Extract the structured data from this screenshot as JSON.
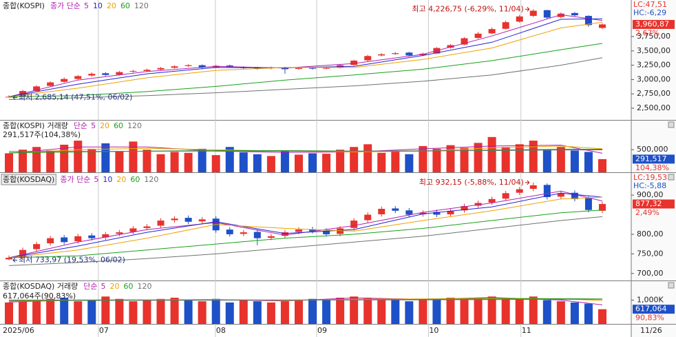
{
  "chart_data": [
    {
      "type": "candlestick",
      "title": "종합(KOSPI)",
      "ma_label": "종가 단순",
      "up_color": "#e8322c",
      "down_color": "#1e50c8",
      "open": [
        2690,
        2710,
        2800,
        2890,
        2960,
        3010,
        3070,
        3110,
        3085,
        3140,
        3150,
        3175,
        3205,
        3235,
        3250,
        3215,
        3245,
        3215,
        3205,
        3195,
        3210,
        3185,
        3200,
        3195,
        3205,
        3255,
        3335,
        3420,
        3445,
        3470,
        3425,
        3455,
        3555,
        3610,
        3725,
        3805,
        3885,
        4010,
        4110,
        4210,
        4090,
        4160,
        4110,
        3900
      ],
      "high": [
        2725,
        2820,
        2900,
        2970,
        3035,
        3080,
        3125,
        3130,
        3150,
        3170,
        3190,
        3220,
        3250,
        3270,
        3265,
        3255,
        3260,
        3230,
        3220,
        3225,
        3225,
        3215,
        3215,
        3215,
        3265,
        3345,
        3430,
        3460,
        3480,
        3485,
        3470,
        3565,
        3620,
        3740,
        3830,
        3910,
        4030,
        4130,
        4226.75,
        4215,
        4170,
        4180,
        4120,
        3980
      ],
      "low": [
        2685.14,
        2700,
        2785,
        2875,
        2945,
        2995,
        3050,
        3060,
        3070,
        3120,
        3135,
        3160,
        3190,
        3220,
        3195,
        3200,
        3205,
        3185,
        3170,
        3180,
        3100,
        3170,
        3175,
        3180,
        3195,
        3245,
        3320,
        3405,
        3430,
        3400,
        3410,
        3445,
        3540,
        3600,
        3710,
        3790,
        3870,
        3990,
        4090,
        4050,
        4070,
        4100,
        3920,
        3880
      ],
      "close": [
        2700,
        2800,
        2880,
        2950,
        3010,
        3060,
        3100,
        3080,
        3130,
        3150,
        3170,
        3200,
        3230,
        3250,
        3210,
        3240,
        3220,
        3200,
        3190,
        3210,
        3180,
        3200,
        3190,
        3200,
        3250,
        3330,
        3410,
        3440,
        3460,
        3420,
        3450,
        3550,
        3600,
        3720,
        3800,
        3880,
        4000,
        4100,
        4200,
        4080,
        4150,
        4120,
        3950,
        3960.87
      ],
      "series": [
        {
          "name": "5",
          "color": "#b01fb0",
          "x": [
            0,
            5,
            10,
            15,
            20,
            25,
            30,
            35,
            40,
            43
          ],
          "values": [
            2700,
            2990,
            3140,
            3230,
            3200,
            3280,
            3440,
            3760,
            4130,
            4030
          ]
        },
        {
          "name": "10",
          "color": "#2323d0",
          "x": [
            0,
            5,
            10,
            15,
            20,
            25,
            30,
            35,
            40,
            43
          ],
          "values": [
            2700,
            2920,
            3100,
            3210,
            3205,
            3230,
            3420,
            3650,
            4050,
            4060
          ]
        },
        {
          "name": "20",
          "color": "#f0a000",
          "x": [
            0,
            5,
            10,
            15,
            20,
            25,
            30,
            35,
            40,
            43
          ],
          "values": [
            2700,
            2850,
            3030,
            3160,
            3210,
            3210,
            3350,
            3550,
            3900,
            4000
          ]
        },
        {
          "name": "60",
          "color": "#18a018",
          "x": [
            0,
            5,
            10,
            15,
            20,
            25,
            30,
            35,
            40,
            43
          ],
          "values": [
            2700,
            2720,
            2790,
            2880,
            2990,
            3080,
            3180,
            3330,
            3520,
            3630
          ]
        },
        {
          "name": "120",
          "color": "#707070",
          "x": [
            0,
            5,
            10,
            15,
            20,
            25,
            30,
            35,
            40,
            43
          ],
          "values": [
            2650,
            2680,
            2720,
            2770,
            2830,
            2890,
            2970,
            3080,
            3250,
            3380
          ]
        }
      ],
      "ylim": [
        2296,
        4387
      ],
      "yticks": [
        {
          "value": 2500,
          "label": "2,500,00"
        },
        {
          "value": 2750,
          "label": "2,750,00"
        },
        {
          "value": 3000,
          "label": "3,000,00"
        },
        {
          "value": 3250,
          "label": "3,250,00"
        },
        {
          "value": 3500,
          "label": "3,500,00"
        },
        {
          "value": 3750,
          "label": "3,750,00"
        }
      ],
      "lc_label": "LC:47,51",
      "hc_label": "HC:-6,29",
      "last_label": "3,960,87",
      "change_label": "2,67%",
      "high_annotation": "최고 4,226,75 (-6,29%, 11/04)",
      "low_annotation": "최저 2,685,14 (47,51%, 06/02)"
    },
    {
      "type": "bar",
      "title": "종합(KOSPI) 거래량",
      "ma_label": "단순",
      "summary": "291,517주(104,38%)",
      "values": [
        420000,
        500000,
        560000,
        480000,
        610000,
        700000,
        520000,
        640000,
        460000,
        680000,
        500000,
        400000,
        450000,
        430000,
        520000,
        380000,
        560000,
        440000,
        400000,
        360000,
        470000,
        390000,
        420000,
        410000,
        500000,
        560000,
        620000,
        430000,
        480000,
        400000,
        580000,
        520000,
        600000,
        540000,
        650000,
        780000,
        560000,
        620000,
        700000,
        500000,
        560000,
        480000,
        450000,
        291517
      ],
      "series": [
        {
          "name": "5",
          "color": "#b01fb0",
          "x": [
            0,
            5,
            10,
            15,
            20,
            25,
            30,
            35,
            40,
            43
          ],
          "values": [
            420000,
            560000,
            560000,
            470000,
            440000,
            450000,
            520000,
            580000,
            600000,
            420000
          ]
        },
        {
          "name": "20",
          "color": "#f0a000",
          "x": [
            0,
            5,
            10,
            15,
            20,
            25,
            30,
            35,
            40,
            43
          ],
          "values": [
            420000,
            500000,
            530000,
            500000,
            470000,
            450000,
            470000,
            540000,
            580000,
            520000
          ]
        },
        {
          "name": "60",
          "color": "#18a018",
          "x": [
            0,
            5,
            10,
            15,
            20,
            25,
            30,
            35,
            40,
            43
          ],
          "values": [
            430000,
            450000,
            470000,
            480000,
            480000,
            470000,
            470000,
            490000,
            510000,
            510000
          ]
        },
        {
          "name": "120",
          "color": "#707070",
          "x": [
            0,
            5,
            10,
            15,
            20,
            25,
            30,
            35,
            40,
            43
          ],
          "values": [
            460000,
            460000,
            465000,
            470000,
            470000,
            470000,
            475000,
            480000,
            490000,
            495000
          ]
        }
      ],
      "ylim": [
        0,
        1143000
      ],
      "yticks": [
        {
          "value": 500000,
          "label": "500,000"
        }
      ],
      "last_label": "291,517",
      "change_label": "104,38%"
    },
    {
      "type": "candlestick",
      "title": "종합(KOSDAQ)",
      "ma_label": "종가 단순",
      "up_color": "#e8322c",
      "down_color": "#1e50c8",
      "open": [
        736,
        742,
        762,
        777,
        792,
        782,
        797,
        792,
        801,
        806,
        816,
        822,
        836,
        842,
        833,
        840,
        812,
        801,
        806,
        791,
        796,
        806,
        813,
        809,
        801,
        816,
        836,
        851,
        866,
        861,
        851,
        857,
        851,
        861,
        873,
        881,
        891,
        906,
        916,
        926,
        896,
        906,
        892,
        860
      ],
      "high": [
        746,
        766,
        781,
        796,
        798,
        801,
        803,
        806,
        811,
        821,
        826,
        841,
        846,
        848,
        844,
        846,
        818,
        811,
        812,
        801,
        811,
        818,
        819,
        815,
        821,
        841,
        856,
        871,
        872,
        867,
        861,
        863,
        866,
        878,
        886,
        896,
        911,
        921,
        932.15,
        930,
        911,
        912,
        898,
        883
      ],
      "low": [
        733.97,
        736,
        756,
        771,
        774,
        776,
        784,
        786,
        795,
        800,
        810,
        816,
        830,
        826,
        827,
        804,
        794,
        795,
        772,
        785,
        790,
        800,
        802,
        794,
        795,
        810,
        830,
        845,
        854,
        844,
        845,
        844,
        845,
        855,
        867,
        875,
        885,
        900,
        910,
        889,
        890,
        884,
        856,
        854
      ],
      "close": [
        740,
        760,
        775,
        790,
        780,
        795,
        790,
        800,
        805,
        815,
        820,
        835,
        840,
        832,
        838,
        810,
        800,
        805,
        790,
        795,
        805,
        812,
        808,
        800,
        815,
        835,
        850,
        865,
        860,
        850,
        855,
        850,
        860,
        872,
        880,
        890,
        905,
        915,
        925,
        895,
        905,
        890,
        862,
        877.32
      ],
      "series": [
        {
          "name": "5",
          "color": "#b01fb0",
          "x": [
            0,
            5,
            10,
            15,
            20,
            25,
            30,
            35,
            40,
            43
          ],
          "values": [
            740,
            780,
            812,
            830,
            798,
            822,
            856,
            880,
            910,
            885
          ]
        },
        {
          "name": "10",
          "color": "#2323d0",
          "x": [
            0,
            5,
            10,
            15,
            20,
            25,
            30,
            35,
            40,
            43
          ],
          "values": [
            740,
            770,
            805,
            832,
            802,
            812,
            852,
            870,
            905,
            895
          ]
        },
        {
          "name": "20",
          "color": "#f0a000",
          "x": [
            0,
            5,
            10,
            15,
            20,
            25,
            30,
            35,
            40,
            43
          ],
          "values": [
            740,
            760,
            790,
            825,
            815,
            808,
            835,
            860,
            890,
            895
          ]
        },
        {
          "name": "60",
          "color": "#18a018",
          "x": [
            0,
            5,
            10,
            15,
            20,
            25,
            30,
            35,
            40,
            43
          ],
          "values": [
            740,
            745,
            760,
            775,
            790,
            800,
            815,
            835,
            855,
            862
          ]
        },
        {
          "name": "120",
          "color": "#707070",
          "x": [
            0,
            5,
            10,
            15,
            20,
            25,
            30,
            35,
            40,
            43
          ],
          "values": [
            720,
            728,
            738,
            750,
            765,
            780,
            795,
            815,
            835,
            845
          ]
        }
      ],
      "ylim": [
        682,
        956.5
      ],
      "yticks": [
        {
          "value": 700,
          "label": "700,00"
        },
        {
          "value": 750,
          "label": "750,00"
        },
        {
          "value": 800,
          "label": "800,00"
        },
        {
          "value": 900,
          "label": "900,00"
        }
      ],
      "lc_label": "LC:19,53",
      "hc_label": "HC:-5,88",
      "last_label": "877,32",
      "change_label": "2,49%",
      "high_annotation": "최고 932,15 (-5,88%, 11/04)",
      "low_annotation": "최저 733,97 (19,53%, 06/02)"
    },
    {
      "type": "bar",
      "title": "종합(KOSDAQ) 거래량",
      "ma_label": "단순",
      "summary": "617,064주(90,83%)",
      "values": [
        900000,
        950000,
        1000000,
        1050000,
        1100000,
        950000,
        1000000,
        1150000,
        1050000,
        950000,
        1000000,
        1050000,
        1100000,
        1000000,
        950000,
        1050000,
        900000,
        1000000,
        950000,
        900000,
        950000,
        1000000,
        1050000,
        1000000,
        1100000,
        1150000,
        1100000,
        1050000,
        1000000,
        950000,
        1050000,
        1000000,
        1100000,
        1050000,
        1100000,
        1150000,
        1100000,
        1050000,
        1150000,
        1000000,
        950000,
        900000,
        850000,
        617064
      ],
      "series": [
        {
          "name": "5",
          "color": "#b01fb0",
          "x": [
            0,
            5,
            10,
            15,
            20,
            25,
            30,
            35,
            40,
            43
          ],
          "values": [
            920000,
            1000000,
            1010000,
            1020000,
            960000,
            1090000,
            1030000,
            1110000,
            1000000,
            800000
          ]
        },
        {
          "name": "20",
          "color": "#f0a000",
          "x": [
            0,
            5,
            10,
            15,
            20,
            25,
            30,
            35,
            40,
            43
          ],
          "values": [
            950000,
            990000,
            1010000,
            1020000,
            980000,
            1040000,
            1050000,
            1080000,
            1060000,
            980000
          ]
        },
        {
          "name": "60",
          "color": "#18a018",
          "x": [
            0,
            5,
            10,
            15,
            20,
            25,
            30,
            35,
            40,
            43
          ],
          "values": [
            1000000,
            1000000,
            1000000,
            1010000,
            1000000,
            1010000,
            1030000,
            1050000,
            1060000,
            1050000
          ]
        },
        {
          "name": "120",
          "color": "#707070",
          "x": [
            0,
            5,
            10,
            15,
            20,
            25,
            30,
            35,
            40,
            43
          ],
          "values": [
            980000,
            985000,
            990000,
            995000,
            1000000,
            1005000,
            1010000,
            1020000,
            1030000,
            1035000
          ]
        }
      ],
      "ylim": [
        0,
        1794000
      ],
      "yticks": [
        {
          "value": 1000000,
          "label": "1,000K"
        }
      ],
      "last_label": "617,064",
      "change_label": "90,83%",
      "xticks": [
        {
          "value": 0,
          "label": "2025/06"
        },
        {
          "value": 6.98,
          "label": "07"
        },
        {
          "value": 15.46,
          "label": "08"
        },
        {
          "value": 22.8,
          "label": "09"
        },
        {
          "value": 30.9,
          "label": "10"
        },
        {
          "value": 37.6,
          "label": "11"
        }
      ],
      "x_end_label": "11/26"
    }
  ]
}
